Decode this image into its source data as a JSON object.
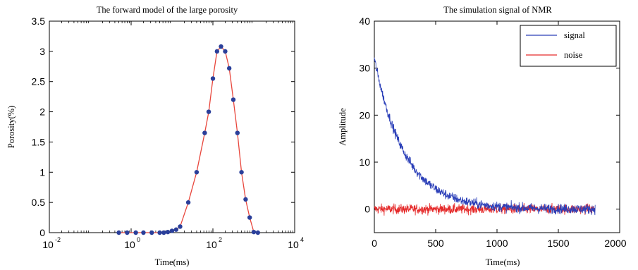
{
  "chart_data": [
    {
      "type": "line",
      "title": "The forward model of the large porosity",
      "xlabel": "Time(ms)",
      "ylabel": "Porosity(%)",
      "xscale": "log",
      "xlim": [
        0.01,
        10000
      ],
      "ylim": [
        0,
        3.5
      ],
      "xticks": [
        {
          "base": "10",
          "exp": "-2",
          "value": 0.01
        },
        {
          "base": "10",
          "exp": "0",
          "value": 1
        },
        {
          "base": "10",
          "exp": "2",
          "value": 100
        },
        {
          "base": "10",
          "exp": "4",
          "value": 10000
        }
      ],
      "yticks": [
        "0",
        "0.5",
        "1",
        "1.5",
        "2",
        "2.5",
        "3",
        "3.5"
      ],
      "grid": false,
      "series": [
        {
          "color": "#e8463c",
          "marker_color": "#2a3f9a",
          "x": [
            0.5,
            0.8,
            1.3,
            2.0,
            3.2,
            5.0,
            6.3,
            7.9,
            10,
            12.6,
            15.8,
            25,
            40,
            63,
            79,
            100,
            126,
            158,
            200,
            251,
            316,
            398,
            501,
            631,
            794,
            1000,
            1259
          ],
          "y": [
            0,
            0,
            0,
            0,
            0,
            0,
            0,
            0.01,
            0.03,
            0.05,
            0.1,
            0.5,
            1.0,
            1.65,
            2.0,
            2.55,
            3.0,
            3.08,
            3.0,
            2.72,
            2.2,
            1.65,
            1.0,
            0.55,
            0.25,
            0.01,
            0
          ]
        }
      ]
    },
    {
      "type": "line",
      "title": "The simulation signal of NMR",
      "xlabel": "Time(ms)",
      "ylabel": "Amplitude",
      "xlim": [
        0,
        2000
      ],
      "ylim": [
        -5,
        40
      ],
      "xticks": [
        "0",
        "500",
        "1000",
        "1500",
        "2000"
      ],
      "yticks": [
        "0",
        "10",
        "20",
        "30",
        "40"
      ],
      "grid": false,
      "legend_position": "top-right",
      "series": [
        {
          "name": "signal",
          "color": "#2b3fb8",
          "amplitude0": 32,
          "decay_ms": 250,
          "x_end": 1800
        },
        {
          "name": "noise",
          "color": "#e52a2a",
          "amplitude0": 0,
          "x_end": 1800
        }
      ]
    }
  ]
}
